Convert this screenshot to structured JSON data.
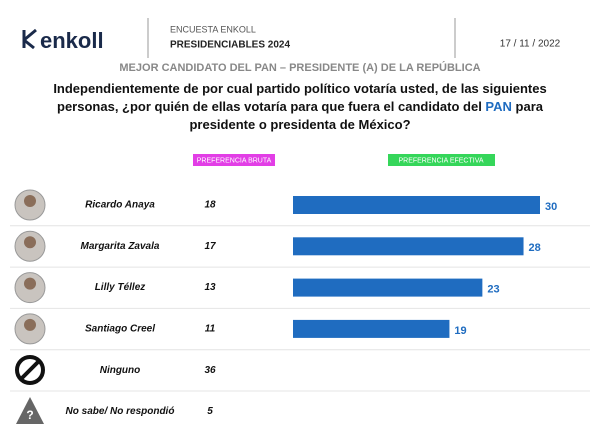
{
  "chart_data": {
    "type": "bar",
    "brand": "enkoll",
    "header_small": "ENCUESTA ENKOLL",
    "header_bold": "PRESIDENCIABLES 2024",
    "date": "17 / 11 / 2022",
    "title": "MEJOR CANDIDATO DEL PAN – PRESIDENTE (A) DE LA REPÚBLICA",
    "question": [
      "Independientemente de por cual partido político votaría usted, de las siguientes personas, ¿por quién de ellas votaría para que fuera el candidato del ",
      "PAN",
      " para presidente o presidenta de México?"
    ],
    "categories": [
      "Ricardo Anaya",
      "Margarita Zavala",
      "Lilly Téllez",
      "Santiago Creel",
      "Ninguno",
      "No sabe/ No respondió"
    ],
    "series": [
      {
        "name": "PREFERENCIA BRUTA",
        "color": "#e23ee6",
        "values": [
          18,
          17,
          13,
          11,
          36,
          5
        ]
      },
      {
        "name": "PREFERENCIA EFECTIVA",
        "color": "#1f6cc0",
        "label_color": "#35d65a",
        "values": [
          30,
          28,
          23,
          19,
          null,
          null
        ]
      }
    ]
  }
}
